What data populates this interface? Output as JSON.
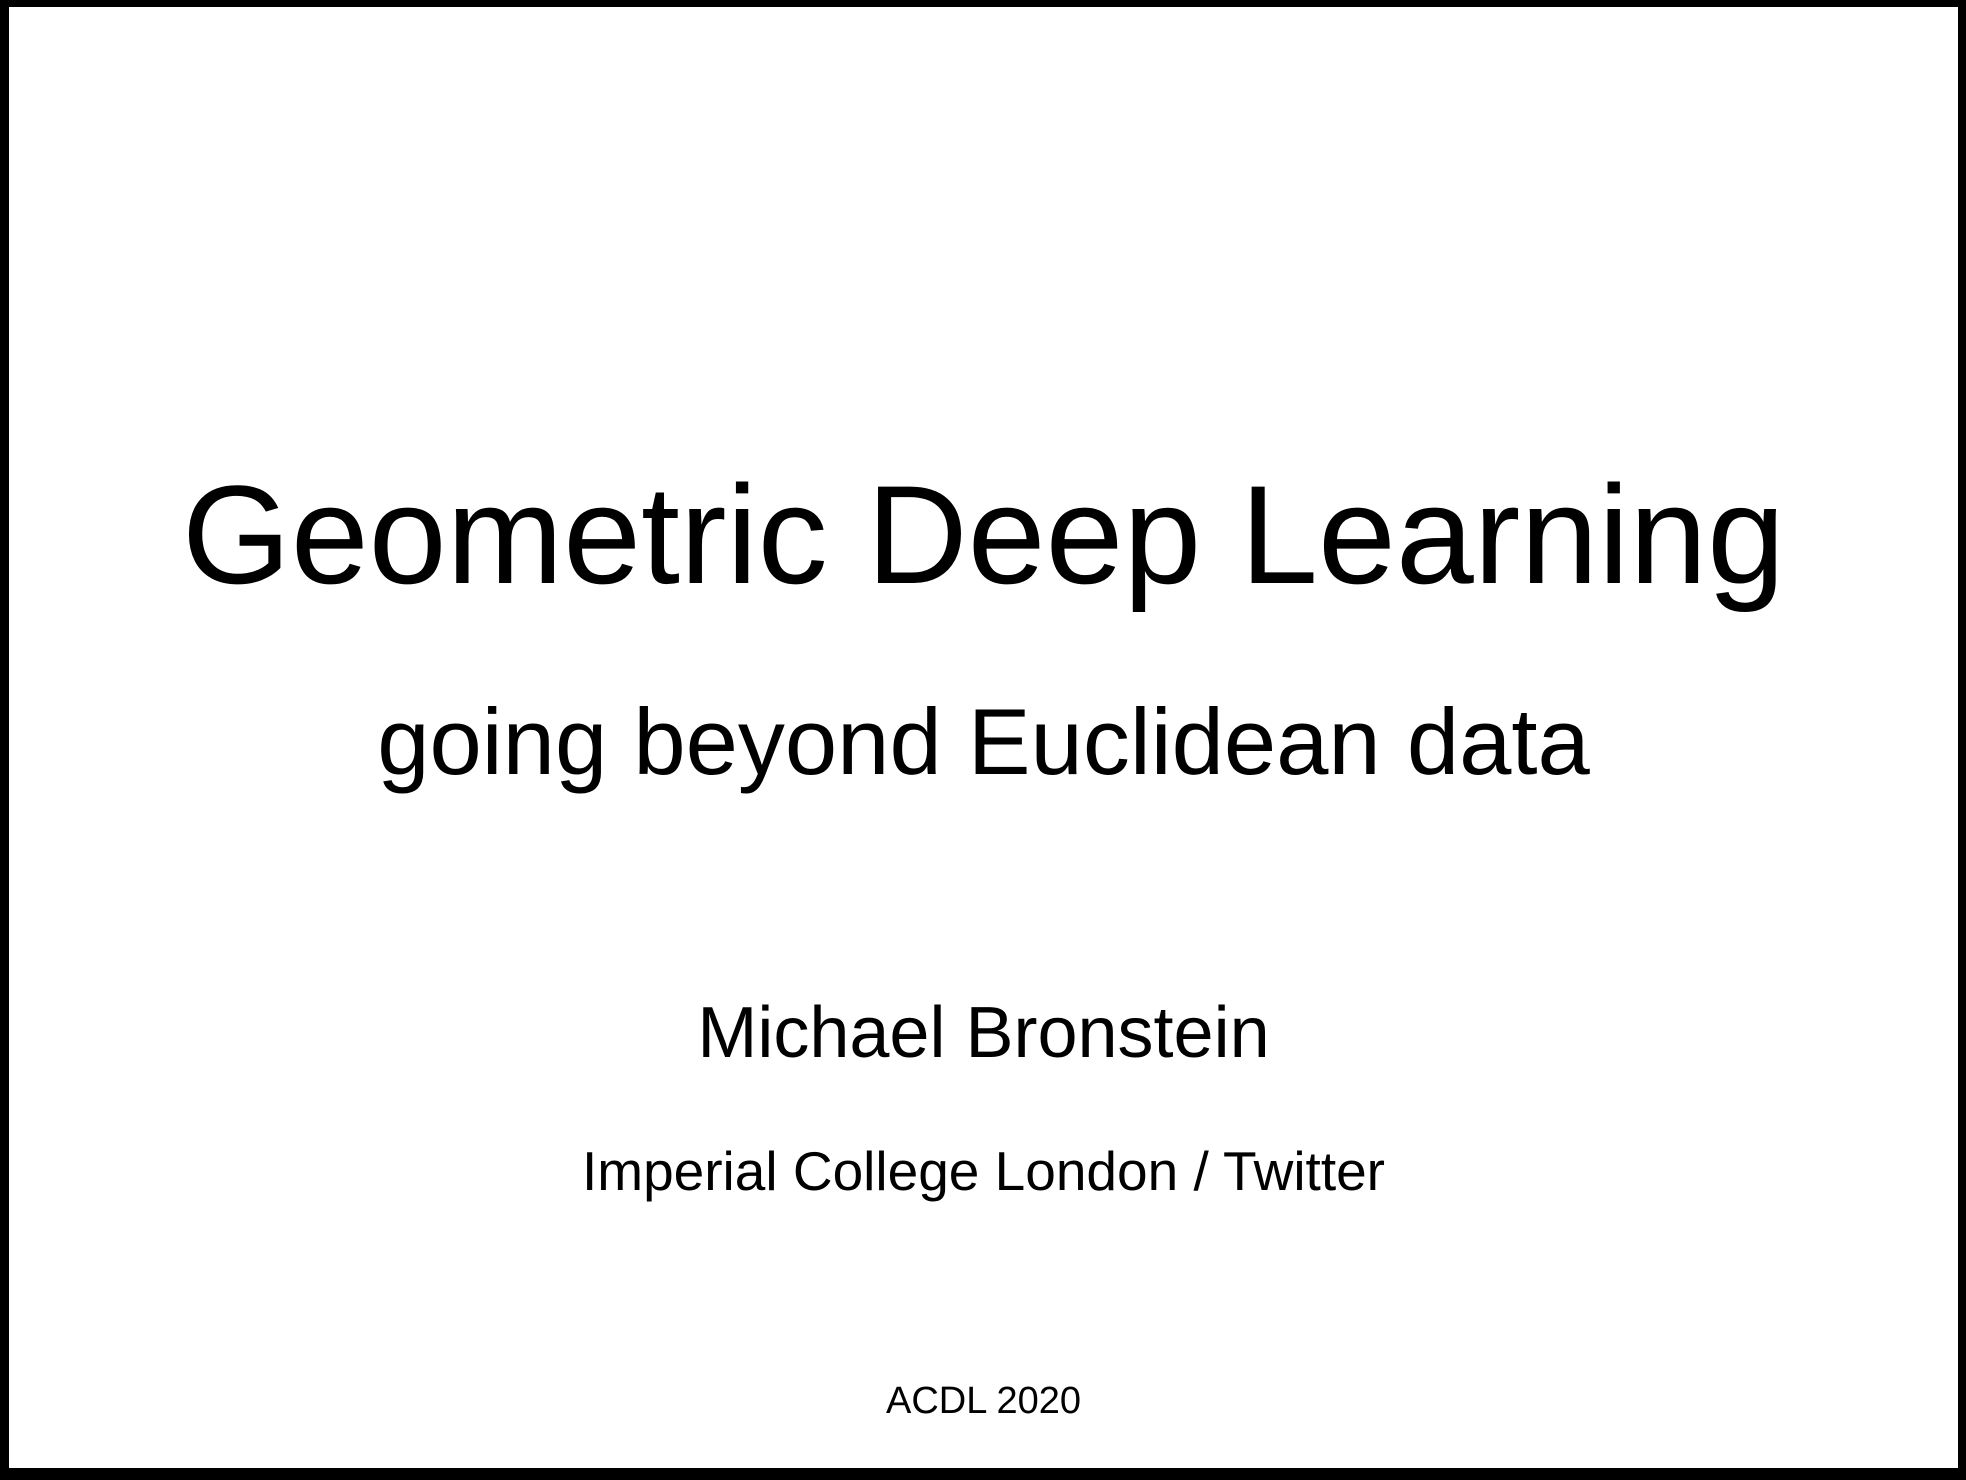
{
  "slide": {
    "title": "Geometric Deep Learning",
    "subtitle": "going beyond Euclidean data",
    "author": "Michael Bronstein",
    "affiliation": "Imperial College London / Twitter",
    "event": "ACDL 2020"
  },
  "colors": {
    "background": "#ffffff",
    "text": "#000000",
    "frame": "#000000"
  }
}
